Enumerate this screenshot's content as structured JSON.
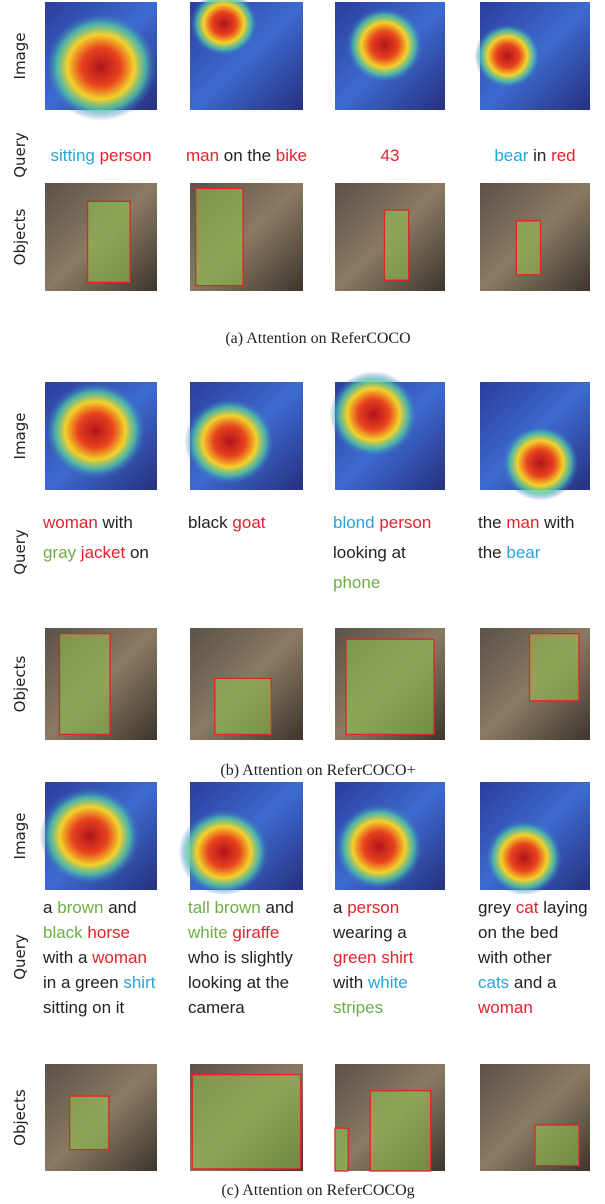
{
  "panels": [
    {
      "row_labels": [
        "Image",
        "Query",
        "Objects"
      ],
      "queries": [
        [
          [
            {
              "text": "sitting ",
              "color": "#29a3d9"
            },
            {
              "text": "person",
              "color": "#e3222c"
            }
          ]
        ],
        [
          [
            {
              "text": "man",
              "color": "#e3222c"
            },
            {
              "text": " on the ",
              "color": "#222222"
            },
            {
              "text": "bike",
              "color": "#e3222c"
            }
          ]
        ],
        [
          [
            {
              "text": "43",
              "color": "#e3222c"
            }
          ]
        ],
        [
          [
            {
              "text": "bear",
              "color": "#29a3d9"
            },
            {
              "text": " in ",
              "color": "#222222"
            },
            {
              "text": "red",
              "color": "#e3222c"
            }
          ]
        ]
      ],
      "caption": "(a)  Attention on ReferCOCO"
    },
    {
      "row_labels": [
        "Image",
        "Query",
        "Objects"
      ],
      "queries": [
        [
          [
            {
              "text": "woman",
              "color": "#e3222c"
            },
            {
              "text": " with",
              "color": "#222222"
            }
          ],
          [
            {
              "text": "gray ",
              "color": "#6cae45"
            },
            {
              "text": "jacket",
              "color": "#e3222c"
            },
            {
              "text": " on",
              "color": "#222222"
            }
          ]
        ],
        [
          [
            {
              "text": "black ",
              "color": "#222222"
            },
            {
              "text": "goat",
              "color": "#e3222c"
            }
          ]
        ],
        [
          [
            {
              "text": "blond ",
              "color": "#29a3d9"
            },
            {
              "text": "person",
              "color": "#e3222c"
            }
          ],
          [
            {
              "text": "looking at",
              "color": "#222222"
            }
          ],
          [
            {
              "text": "phone",
              "color": "#6cae45"
            }
          ]
        ],
        [
          [
            {
              "text": "the ",
              "color": "#222222"
            },
            {
              "text": "man",
              "color": "#e3222c"
            },
            {
              "text": " with",
              "color": "#222222"
            }
          ],
          [
            {
              "text": "the ",
              "color": "#222222"
            },
            {
              "text": "bear",
              "color": "#29a3d9"
            }
          ]
        ]
      ],
      "caption": "(b)  Attention on ReferCOCO+"
    },
    {
      "row_labels": [
        "Image",
        "Query",
        "Objects"
      ],
      "queries": [
        [
          [
            {
              "text": "a ",
              "color": "#222222"
            },
            {
              "text": "brown",
              "color": "#6cae45"
            },
            {
              "text": " and",
              "color": "#222222"
            }
          ],
          [
            {
              "text": "black ",
              "color": "#6cae45"
            },
            {
              "text": "horse",
              "color": "#e3222c"
            }
          ],
          [
            {
              "text": "with a ",
              "color": "#222222"
            },
            {
              "text": "woman",
              "color": "#e3222c"
            }
          ],
          [
            {
              "text": "in a green ",
              "color": "#222222"
            },
            {
              "text": "shirt",
              "color": "#29a3d9"
            }
          ],
          [
            {
              "text": "sitting on it",
              "color": "#222222"
            }
          ]
        ],
        [
          [
            {
              "text": "tall brown",
              "color": "#6cae45"
            },
            {
              "text": " and",
              "color": "#222222"
            }
          ],
          [
            {
              "text": "white ",
              "color": "#6cae45"
            },
            {
              "text": "giraffe",
              "color": "#e3222c"
            }
          ],
          [
            {
              "text": "who is slightly",
              "color": "#222222"
            }
          ],
          [
            {
              "text": "looking at the",
              "color": "#222222"
            }
          ],
          [
            {
              "text": "camera",
              "color": "#222222"
            }
          ]
        ],
        [
          [
            {
              "text": "a ",
              "color": "#222222"
            },
            {
              "text": "person",
              "color": "#e3222c"
            }
          ],
          [
            {
              "text": "wearing a",
              "color": "#222222"
            }
          ],
          [
            {
              "text": "green shirt",
              "color": "#e3222c"
            }
          ],
          [
            {
              "text": "with ",
              "color": "#222222"
            },
            {
              "text": "white",
              "color": "#29a3d9"
            }
          ],
          [
            {
              "text": "stripes",
              "color": "#6cae45"
            }
          ]
        ],
        [
          [
            {
              "text": "grey ",
              "color": "#222222"
            },
            {
              "text": "cat",
              "color": "#e3222c"
            },
            {
              "text": " laying",
              "color": "#222222"
            }
          ],
          [
            {
              "text": "on the bed",
              "color": "#222222"
            }
          ],
          [
            {
              "text": "with other",
              "color": "#222222"
            }
          ],
          [
            {
              "text": "cats",
              "color": "#29a3d9"
            },
            {
              "text": " and a",
              "color": "#222222"
            }
          ],
          [
            {
              "text": "woman",
              "color": "#e3222c"
            }
          ]
        ]
      ],
      "caption": "(c)  Attention on ReferCOCOg"
    }
  ]
}
